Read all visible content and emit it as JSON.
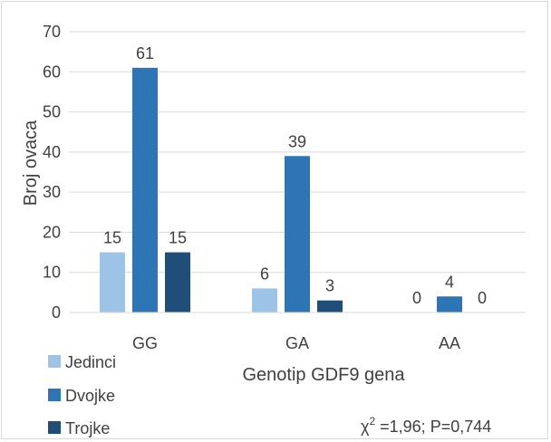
{
  "chart_data": {
    "type": "bar",
    "categories": [
      "GG",
      "GA",
      "AA"
    ],
    "series": [
      {
        "name": "Jedinci",
        "values": [
          15,
          6,
          0
        ],
        "color": "#9dc3e6"
      },
      {
        "name": "Dvojke",
        "values": [
          61,
          39,
          4
        ],
        "color": "#2e75b6"
      },
      {
        "name": "Trojke",
        "values": [
          15,
          3,
          0
        ],
        "color": "#1f4e79"
      }
    ],
    "xlabel": "Genotip GDF9 gena",
    "ylabel": "Broj ovaca",
    "ylim": [
      0,
      70
    ],
    "yticks": [
      0,
      10,
      20,
      30,
      40,
      50,
      60,
      70
    ],
    "grid": true,
    "legend_position": "bottom-left",
    "annotation": {
      "chi": "χ",
      "sup": "2",
      "rest": " =1,96; P=0,744"
    },
    "data_labels": true
  }
}
